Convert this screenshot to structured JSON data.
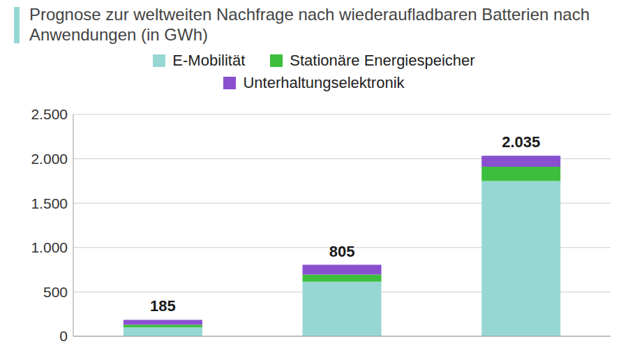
{
  "chart_data": {
    "type": "bar",
    "title": "Prognose zur weltweiten Nachfrage nach wiederaufladbaren Batterien nach Anwendungen (in GWh)",
    "categories": [
      null,
      null,
      null
    ],
    "series": [
      {
        "name": "E-Mobilität",
        "color": "#97d7d3",
        "values": [
          100,
          615,
          1750
        ]
      },
      {
        "name": "Stationäre Energiespeicher",
        "color": "#3cbf3c",
        "values": [
          30,
          80,
          160
        ]
      },
      {
        "name": "Unterhaltungselektronik",
        "color": "#8a4fcf",
        "values": [
          55,
          110,
          125
        ]
      }
    ],
    "totals": [
      185,
      805,
      2035
    ],
    "total_labels": [
      "185",
      "805",
      "2.035"
    ],
    "stacked": true,
    "ylim": [
      0,
      2500
    ],
    "yticks": [
      0,
      500,
      {
        "value": 1000,
        "label": "1.000"
      },
      {
        "value": 1500,
        "label": "1.500"
      },
      {
        "value": 2000,
        "label": "2.000"
      },
      {
        "value": 2500,
        "label": "2.500"
      }
    ],
    "grid": true,
    "legend": "top"
  }
}
